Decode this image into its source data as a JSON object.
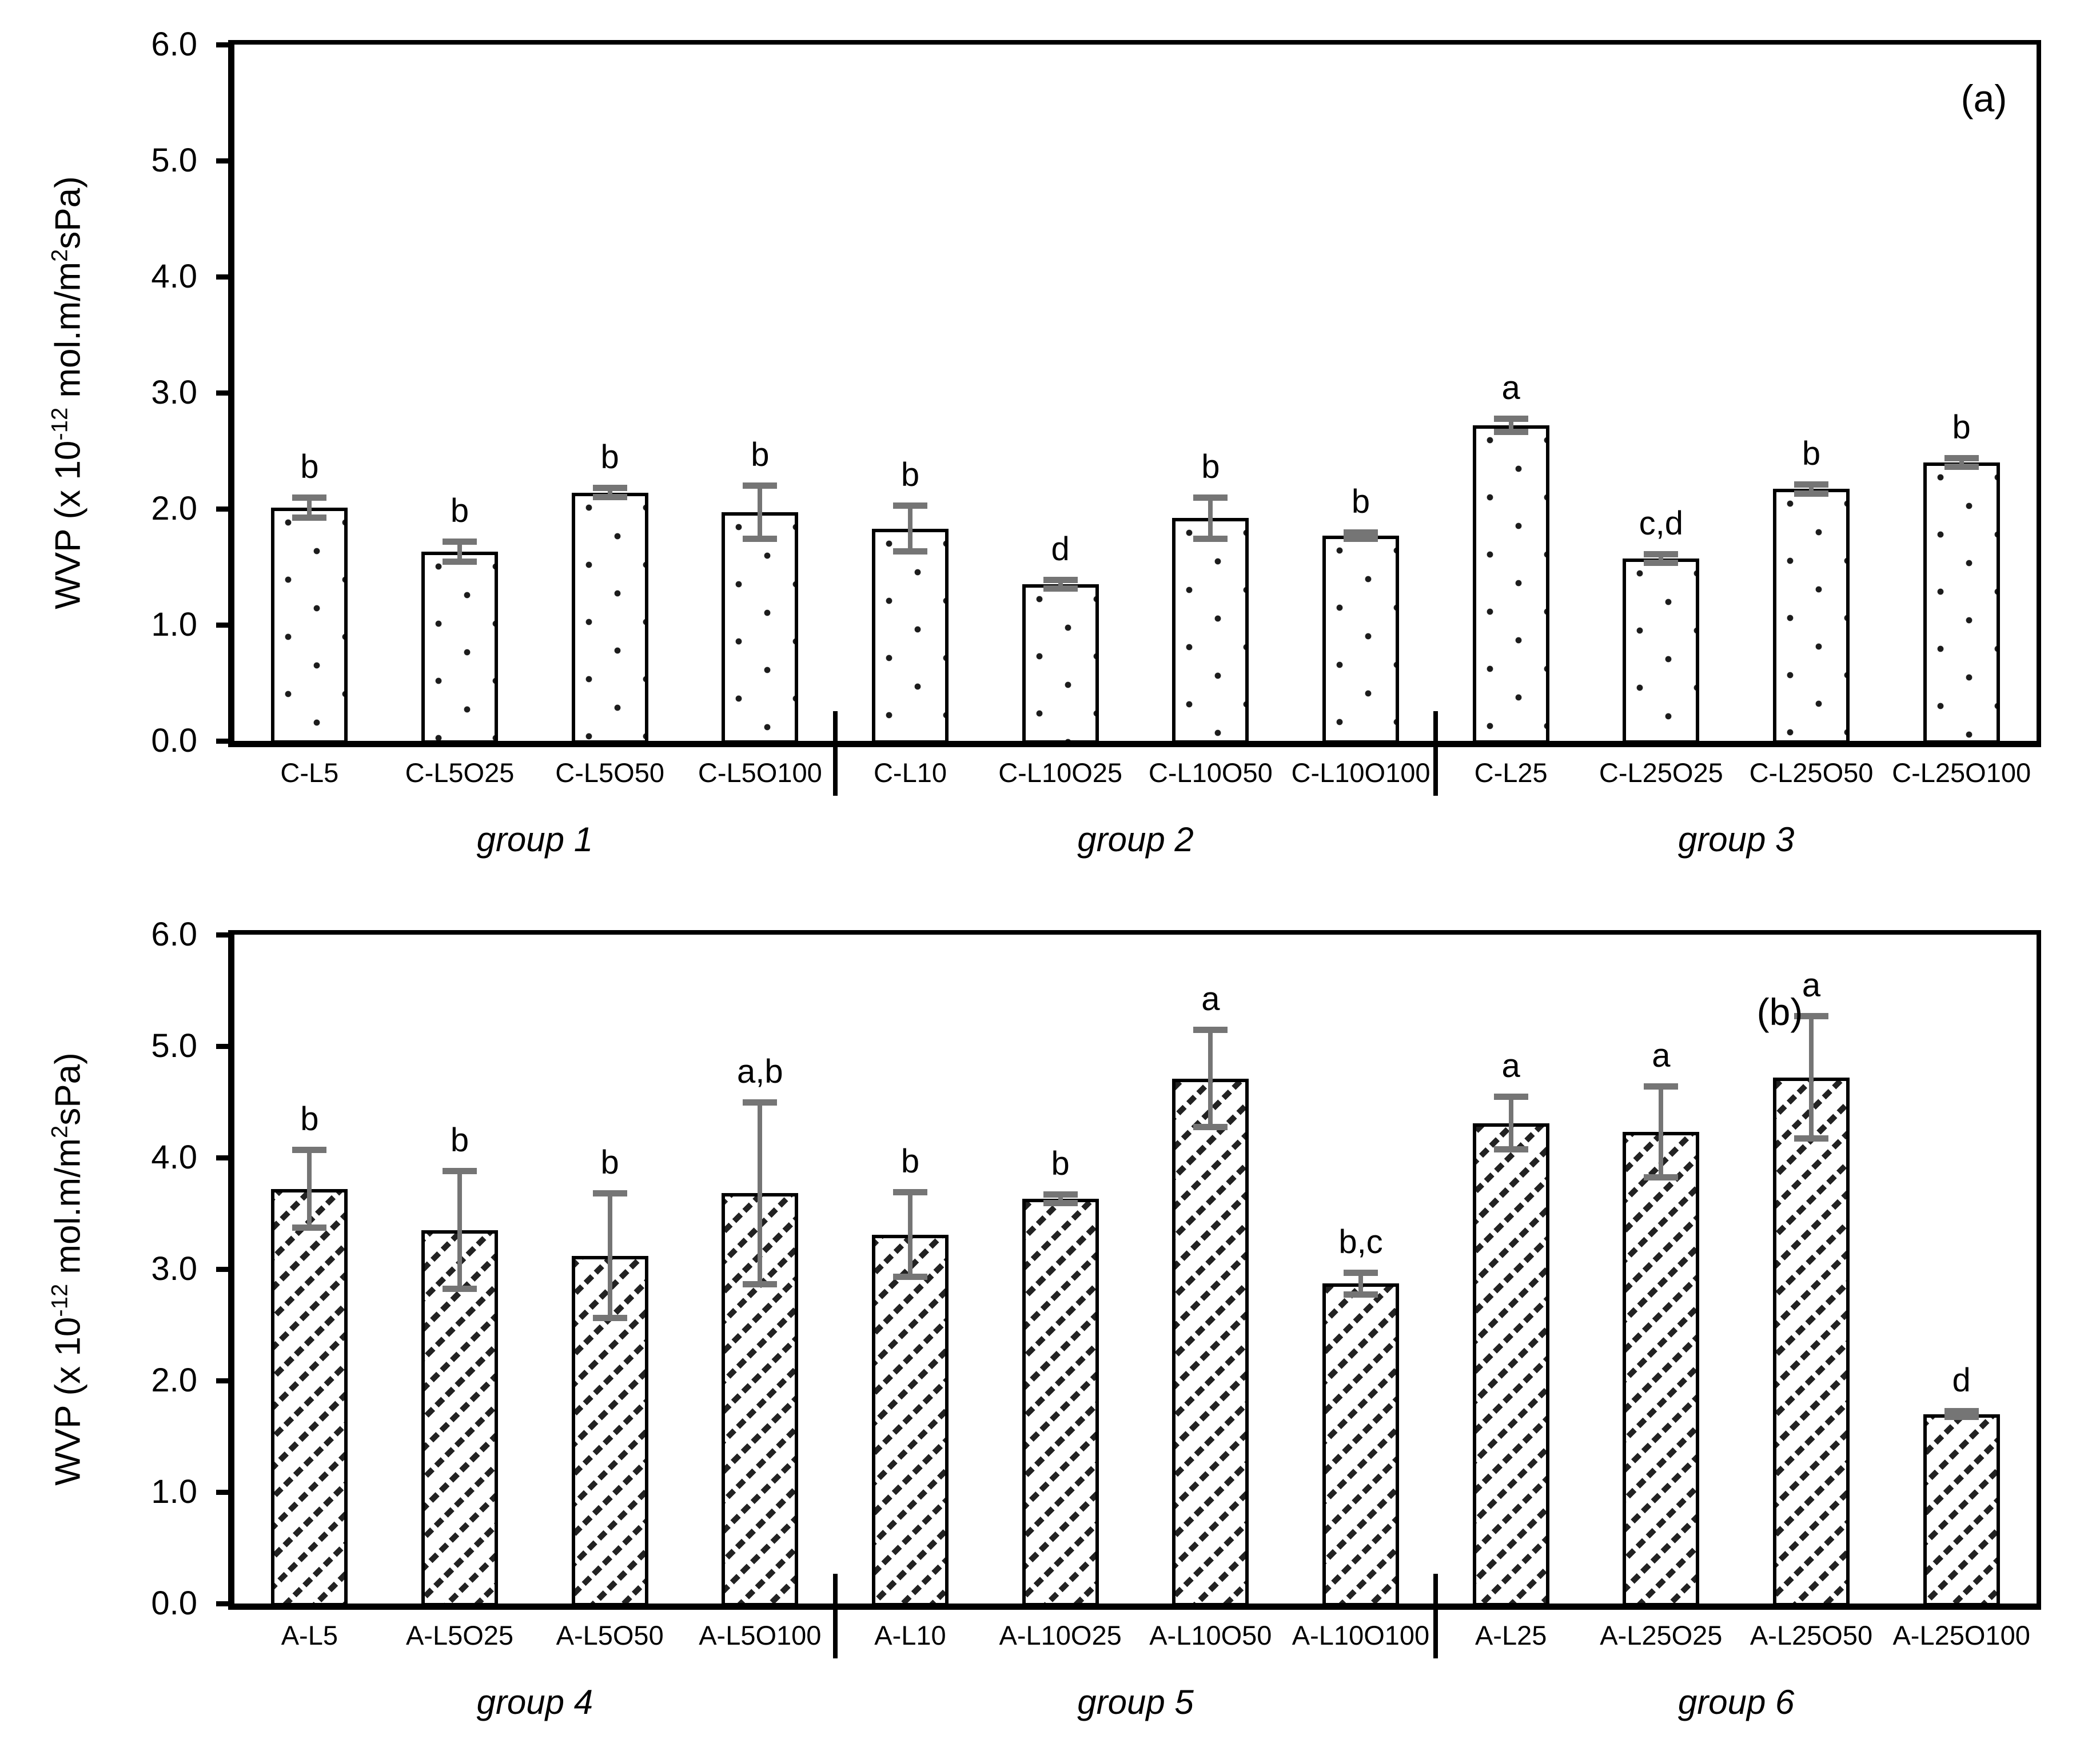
{
  "figure": {
    "background": "#ffffff",
    "panel_count": 2
  },
  "colors": {
    "axis_line": "#000000",
    "bar_fill": "#ffffff",
    "bar_outline": "#000000",
    "pattern_ink": "#1c1c1c",
    "error_bar": "#757575",
    "text": "#000000"
  },
  "axis": {
    "ylabel_text": "WVP (x 10-12 mol.m/m2sPa)",
    "ylabel_parts": {
      "pre": "WVP (x 10",
      "sup1": "-12",
      "mid": " mol.m/m",
      "sup2": "2",
      "post": "sPa)"
    }
  },
  "chart_data": [
    {
      "type": "bar",
      "panel_label": "(a)",
      "bar_pattern": "dotted",
      "ylabel": "WVP (x 10^-12 mol.m/m^2sPa)",
      "ylim": [
        0,
        6
      ],
      "ytick_step": 1.0,
      "yticks": [
        "0.0",
        "1.0",
        "2.0",
        "3.0",
        "4.0",
        "5.0",
        "6.0"
      ],
      "grid": false,
      "legend": null,
      "categories": [
        "C-L5",
        "C-L5O25",
        "C-L5O50",
        "C-L5O100",
        "C-L10",
        "C-L10O25",
        "C-L10O50",
        "C-L10O100",
        "C-L25",
        "C-L25O25",
        "C-L25O50",
        "C-L25O100"
      ],
      "values": [
        2.01,
        1.63,
        2.14,
        1.97,
        1.83,
        1.35,
        1.92,
        1.77,
        2.72,
        1.57,
        2.17,
        2.4
      ],
      "errors": [
        0.09,
        0.09,
        0.04,
        0.23,
        0.2,
        0.04,
        0.18,
        0.03,
        0.06,
        0.04,
        0.04,
        0.04
      ],
      "sig_letters": [
        "b",
        "b",
        "b",
        "b",
        "b",
        "d",
        "b",
        "b",
        "a",
        "c,d",
        "b",
        "b"
      ],
      "groups": [
        {
          "label": "group 1",
          "from": 0,
          "to": 3
        },
        {
          "label": "group 2",
          "from": 4,
          "to": 7
        },
        {
          "label": "group 3",
          "from": 8,
          "to": 11
        }
      ]
    },
    {
      "type": "bar",
      "panel_label": "(b)",
      "bar_pattern": "hatched",
      "ylabel": "WVP (x 10^-12 mol.m/m^2sPa)",
      "ylim": [
        0,
        6
      ],
      "ytick_step": 1.0,
      "yticks": [
        "0.0",
        "1.0",
        "2.0",
        "3.0",
        "4.0",
        "5.0",
        "6.0"
      ],
      "grid": false,
      "legend": null,
      "categories": [
        "A-L5",
        "A-L5O25",
        "A-L5O50",
        "A-L5O100",
        "A-L10",
        "A-L10O25",
        "A-L10O50",
        "A-L10O100",
        "A-L25",
        "A-L25O25",
        "A-L25O50",
        "A-L25O100"
      ],
      "values": [
        3.72,
        3.35,
        3.12,
        3.68,
        3.31,
        3.63,
        4.71,
        2.87,
        4.31,
        4.23,
        4.72,
        1.7
      ],
      "errors": [
        0.35,
        0.53,
        0.56,
        0.82,
        0.38,
        0.04,
        0.44,
        0.1,
        0.24,
        0.41,
        0.55,
        0.03
      ],
      "sig_letters": [
        "b",
        "b",
        "b",
        "a,b",
        "b",
        "b",
        "a",
        "b,c",
        "a",
        "a",
        "a",
        "d"
      ],
      "groups": [
        {
          "label": "group 4",
          "from": 0,
          "to": 3
        },
        {
          "label": "group 5",
          "from": 4,
          "to": 7
        },
        {
          "label": "group 6",
          "from": 8,
          "to": 11
        }
      ]
    }
  ]
}
